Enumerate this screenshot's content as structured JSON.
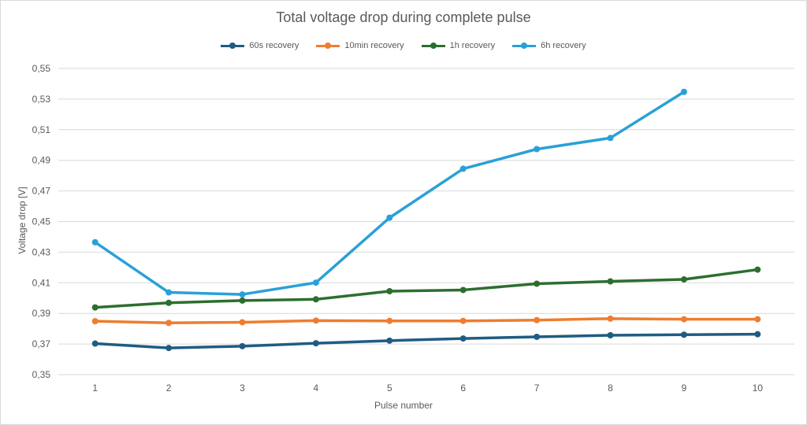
{
  "chart_data": {
    "type": "line",
    "title": "Total voltage drop during complete pulse",
    "xlabel": "Pulse number",
    "ylabel": "Voltage drop [V]",
    "categories": [
      "1",
      "2",
      "3",
      "4",
      "5",
      "6",
      "7",
      "8",
      "9",
      "10"
    ],
    "ylim": [
      0.35,
      0.55
    ],
    "yticks": [
      "0,35",
      "0,37",
      "0,39",
      "0,41",
      "0,43",
      "0,45",
      "0,47",
      "0,49",
      "0,51",
      "0,53",
      "0,55"
    ],
    "ytick_values": [
      0.35,
      0.37,
      0.39,
      0.41,
      0.43,
      0.45,
      0.47,
      0.49,
      0.51,
      0.53,
      0.55
    ],
    "grid": true,
    "legend_position": "top",
    "series": [
      {
        "name": "60s recovery",
        "color": "#1f5c82",
        "values": [
          0.3703,
          0.3674,
          0.3686,
          0.3705,
          0.3722,
          0.3736,
          0.3747,
          0.3757,
          0.3761,
          0.3764
        ]
      },
      {
        "name": "10min recovery",
        "color": "#ed7d31",
        "values": [
          0.3849,
          0.3838,
          0.3842,
          0.3853,
          0.3851,
          0.3851,
          0.3856,
          0.3866,
          0.3862,
          0.3862
        ]
      },
      {
        "name": "1h recovery",
        "color": "#2d6e2f",
        "values": [
          0.3939,
          0.3969,
          0.3984,
          0.3992,
          0.4045,
          0.4053,
          0.4094,
          0.4109,
          0.4122,
          0.4186
        ]
      },
      {
        "name": "6h recovery",
        "color": "#2aa0d8",
        "values": [
          0.4365,
          0.4037,
          0.4024,
          0.4101,
          0.4525,
          0.4845,
          0.4973,
          0.5046,
          0.5347,
          null
        ]
      }
    ]
  }
}
